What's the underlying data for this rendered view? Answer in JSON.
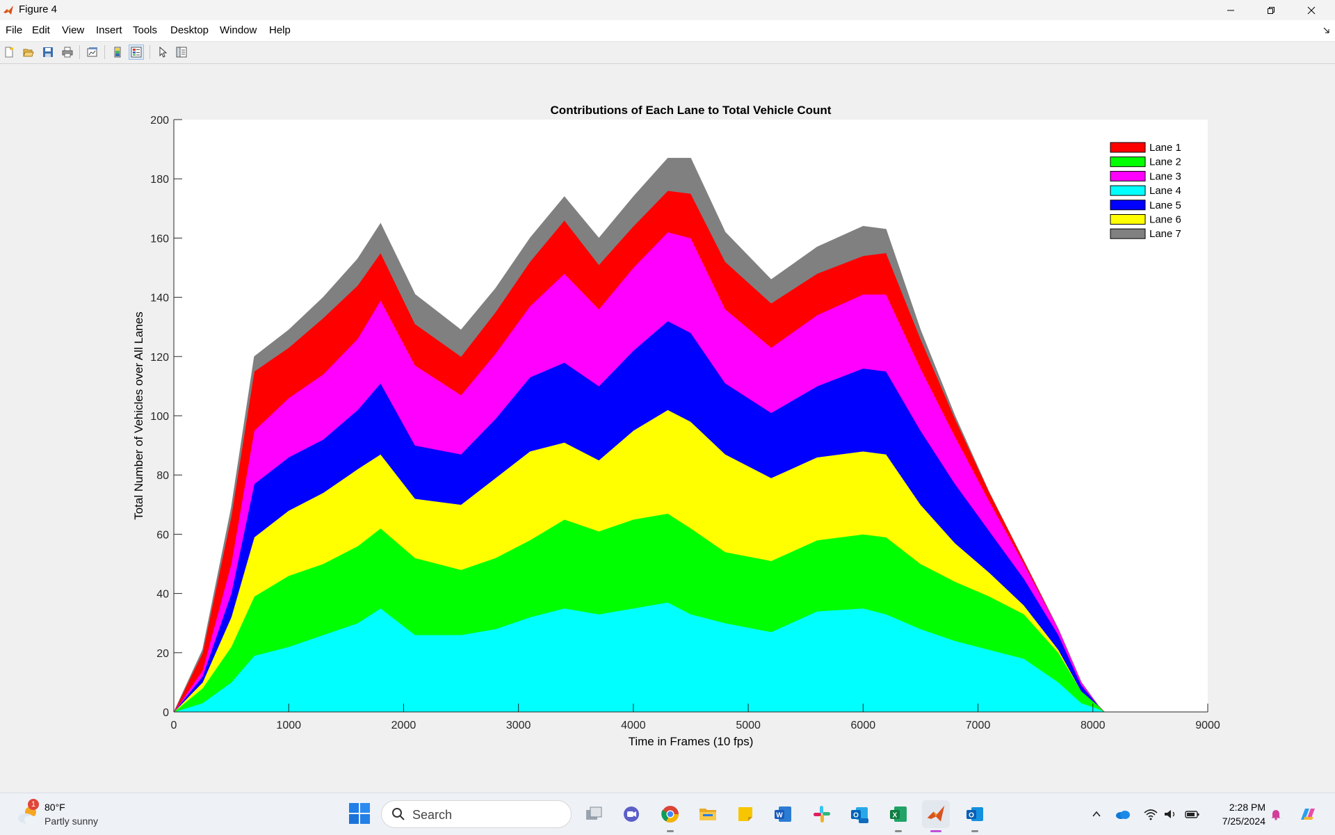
{
  "window": {
    "title": "Figure 4"
  },
  "menu": [
    "File",
    "Edit",
    "View",
    "Insert",
    "Tools",
    "Desktop",
    "Window",
    "Help"
  ],
  "colors": {
    "lane_1": "#ff0000",
    "lane_2": "#00ff00",
    "lane_3": "#ff00ff",
    "lane_4": "#00ffff",
    "lane_5": "#0000ff",
    "lane_6": "#ffff00",
    "lane_7": "#808080"
  },
  "chart_data": {
    "type": "area",
    "stacked": true,
    "title": "Contributions of Each Lane to Total Vehicle Count",
    "xlabel": "Time in Frames (10 fps)",
    "ylabel": "Total Number of Vehicles over All Lanes",
    "xlim": [
      0,
      9000
    ],
    "ylim": [
      0,
      200
    ],
    "xticks": [
      0,
      1000,
      2000,
      3000,
      4000,
      5000,
      6000,
      7000,
      8000,
      9000
    ],
    "yticks": [
      0,
      20,
      40,
      60,
      80,
      100,
      120,
      140,
      160,
      180,
      200
    ],
    "grid": false,
    "legend_position": "top-right",
    "stack_order": [
      "Lane 4",
      "Lane 2",
      "Lane 6",
      "Lane 5",
      "Lane 3",
      "Lane 1",
      "Lane 7"
    ],
    "x": [
      0,
      250,
      500,
      700,
      1000,
      1300,
      1600,
      1800,
      2100,
      2500,
      2800,
      3100,
      3400,
      3700,
      4000,
      4300,
      4500,
      4800,
      5200,
      5600,
      6000,
      6200,
      6500,
      6800,
      7100,
      7400,
      7700,
      7900,
      8050,
      8100,
      9000
    ],
    "series": [
      {
        "name": "Lane 1",
        "values": [
          0,
          6,
          16,
          20,
          17,
          19,
          18,
          16,
          14,
          13,
          14,
          15,
          18,
          15,
          14,
          14,
          15,
          16,
          15,
          14,
          13,
          14,
          10,
          6,
          3,
          1,
          0,
          0,
          0,
          0,
          0
        ]
      },
      {
        "name": "Lane 2",
        "values": [
          0,
          5,
          12,
          20,
          24,
          24,
          26,
          27,
          26,
          22,
          24,
          26,
          30,
          28,
          30,
          30,
          29,
          24,
          24,
          24,
          25,
          26,
          22,
          20,
          18,
          15,
          10,
          4,
          1,
          0,
          0
        ]
      },
      {
        "name": "Lane 3",
        "values": [
          0,
          2,
          10,
          18,
          20,
          22,
          24,
          28,
          27,
          20,
          22,
          24,
          30,
          26,
          28,
          30,
          32,
          25,
          22,
          24,
          25,
          26,
          21,
          16,
          10,
          5,
          2,
          1,
          0,
          0,
          0
        ]
      },
      {
        "name": "Lane 4",
        "values": [
          0,
          3,
          10,
          19,
          22,
          26,
          30,
          35,
          26,
          26,
          28,
          32,
          35,
          33,
          35,
          37,
          33,
          30,
          27,
          34,
          35,
          33,
          28,
          24,
          21,
          18,
          10,
          3,
          1,
          0,
          0
        ]
      },
      {
        "name": "Lane 5",
        "values": [
          0,
          2,
          8,
          18,
          18,
          18,
          20,
          24,
          18,
          17,
          20,
          25,
          27,
          25,
          27,
          30,
          30,
          24,
          22,
          24,
          28,
          28,
          25,
          20,
          14,
          9,
          5,
          2,
          0,
          0,
          0
        ]
      },
      {
        "name": "Lane 6",
        "values": [
          0,
          2,
          10,
          20,
          22,
          24,
          26,
          25,
          20,
          22,
          27,
          30,
          26,
          24,
          30,
          35,
          36,
          33,
          28,
          28,
          28,
          28,
          20,
          13,
          8,
          3,
          1,
          0,
          0,
          0,
          0
        ]
      },
      {
        "name": "Lane 7",
        "values": [
          0,
          1,
          3,
          5,
          6,
          7,
          9,
          10,
          10,
          9,
          8,
          8,
          8,
          9,
          10,
          11,
          12,
          10,
          8,
          9,
          10,
          8,
          3,
          1,
          0,
          0,
          0,
          0,
          0,
          0,
          0
        ]
      }
    ]
  },
  "taskbar": {
    "weather_temp": "80°F",
    "weather_condition": "Partly sunny",
    "weather_badge": "1",
    "search_placeholder": "Search",
    "time": "2:28 PM",
    "date": "7/25/2024"
  }
}
